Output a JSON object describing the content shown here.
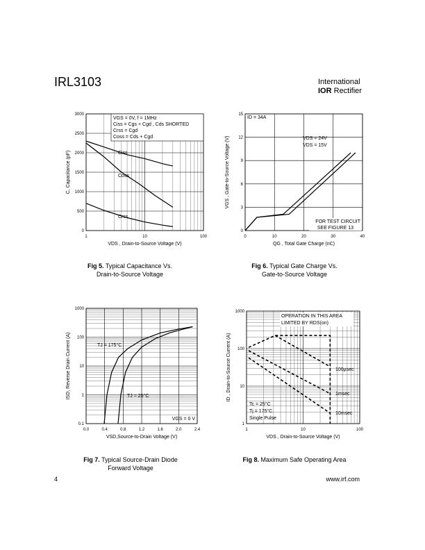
{
  "header": {
    "title": "IRL3103",
    "logo": [
      "International",
      "IOR",
      "Rectifier"
    ]
  },
  "chart_data": [
    {
      "type": "line",
      "xlog": true,
      "ylog": false,
      "minor_grid": true,
      "line_style": "solid",
      "color": "#000000",
      "xlabel": "VDS , Drain-to-Source Voltage (V)",
      "ylabel": "C, Capacitance (pF)",
      "xlim": [
        1,
        100
      ],
      "xticks": [
        1,
        10,
        100
      ],
      "ylim": [
        0,
        3000
      ],
      "yticks": [
        0,
        500,
        1000,
        1500,
        2000,
        2500,
        3000
      ],
      "annotations": [
        "VGS = 0V,       f = 1MHz",
        "Ciss = Cgs + Cgd ,  Cds  SHORTED",
        "Crss = Cgd",
        "Coss = Cds + Cgd"
      ],
      "series": [
        {
          "name": "Ciss",
          "x": [
            1,
            2,
            5,
            10,
            20,
            30
          ],
          "values": [
            2300,
            2150,
            1950,
            1850,
            1720,
            1660
          ]
        },
        {
          "name": "Coss",
          "x": [
            1,
            2,
            4,
            8,
            15,
            30
          ],
          "values": [
            2250,
            1900,
            1500,
            1200,
            900,
            600
          ]
        },
        {
          "name": "Crss",
          "x": [
            1,
            2,
            5,
            10,
            20,
            30
          ],
          "values": [
            700,
            520,
            330,
            220,
            140,
            100
          ]
        }
      ],
      "caption": {
        "label": "Fig 5.",
        "lines": [
          "Typical Capacitance Vs.",
          "Drain-to-Source Voltage"
        ]
      }
    },
    {
      "type": "line",
      "xlog": false,
      "ylog": false,
      "minor_grid": false,
      "line_style": "solid",
      "color": "#000000",
      "xlabel": "QG , Total Gate Charge (nC)",
      "ylabel": "VGS , Gate-to-Source Voltage (V)",
      "xlim": [
        0,
        40
      ],
      "xticks": [
        0,
        10,
        20,
        30,
        40
      ],
      "ylim": [
        0,
        15
      ],
      "yticks": [
        0,
        3,
        6,
        9,
        12,
        15
      ],
      "annotations": [
        "ID = 34A",
        "FOR TEST CIRCUIT",
        "SEE FIGURE 13"
      ],
      "series": [
        {
          "name": "VDS = 24V",
          "x": [
            0,
            4,
            15,
            37.6
          ],
          "values": [
            0,
            1.7,
            2.1,
            10
          ]
        },
        {
          "name": "VDS = 15V",
          "x": [
            0,
            4,
            13,
            36
          ],
          "values": [
            0,
            1.7,
            2.1,
            10
          ]
        }
      ],
      "caption": {
        "label": "Fig 6.",
        "lines": [
          "Typical Gate Charge Vs.",
          "Gate-to-Source Voltage"
        ]
      }
    },
    {
      "type": "line",
      "xlog": false,
      "ylog": true,
      "minor_grid": true,
      "line_style": "solid",
      "color": "#000000",
      "xlabel": "VSD,Source-to-Drain Voltage (V)",
      "ylabel": "ISD, Reverse Drain Current (A)",
      "xlim": [
        0,
        2.4
      ],
      "xticks": [
        {
          "value": 0,
          "label": "0.0"
        },
        0.4,
        0.8,
        1.2,
        1.6,
        {
          "value": 2,
          "label": "2.0"
        },
        2.4
      ],
      "ylim": [
        0.1,
        1000
      ],
      "yticks": [
        0.1,
        1,
        10,
        100,
        1000
      ],
      "annotations": [
        "VGS = 0 V"
      ],
      "series": [
        {
          "name": "TJ = 175°C",
          "x": [
            0.39,
            0.45,
            0.55,
            0.7,
            0.9,
            1.2,
            1.6,
            2.0,
            2.3
          ],
          "values": [
            0.1,
            1,
            6,
            20,
            40,
            80,
            140,
            190,
            230
          ]
        },
        {
          "name": "TJ = 25°C",
          "x": [
            0.69,
            0.75,
            0.85,
            1.0,
            1.2,
            1.5,
            1.8,
            2.1,
            2.3
          ],
          "values": [
            0.1,
            1,
            6,
            20,
            45,
            90,
            140,
            190,
            230
          ]
        }
      ],
      "caption": {
        "label": "Fig 7.",
        "lines": [
          "Typical Source-Drain Diode",
          "Forward Voltage"
        ]
      }
    },
    {
      "type": "line",
      "xlog": true,
      "ylog": true,
      "minor_grid": true,
      "line_style": "dashed",
      "color": "#000000",
      "xlabel": "VDS , Drain-to-Source Voltage (V)",
      "ylabel": "ID , Drain-to-Source Current (A)",
      "xlim": [
        1,
        100
      ],
      "xticks": [
        1,
        10,
        100
      ],
      "ylim": [
        1,
        1000
      ],
      "yticks": [
        1,
        10,
        100,
        1000
      ],
      "annotations": [
        "OPERATION IN THIS AREA",
        "LIMITED BY RDS(on)",
        "Tc = 25°C",
        "Tj = 175°C",
        "Single Pulse"
      ],
      "series": [
        {
          "x": [
            1.09,
            3.2,
            30,
            30
          ],
          "values": [
            108,
            224,
            224,
            1
          ]
        },
        {
          "name": "100µsec",
          "x": [
            3.2,
            30
          ],
          "values": [
            224,
            33
          ]
        },
        {
          "name": "1msec",
          "x": [
            1.09,
            30
          ],
          "values": [
            88,
            6.3
          ]
        },
        {
          "name": "10msec",
          "x": [
            1.09,
            30
          ],
          "values": [
            57,
            1.9
          ]
        }
      ],
      "caption": {
        "label": "Fig 8.",
        "lines": [
          "Maximum Safe Operating Area"
        ]
      }
    }
  ],
  "footer": {
    "page": "4",
    "url": "www.irf.com"
  }
}
